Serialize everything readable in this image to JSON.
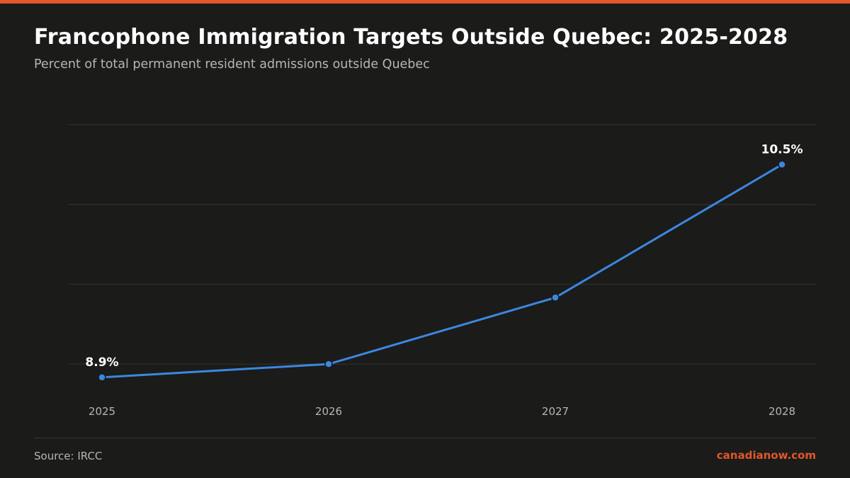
{
  "page": {
    "title": "Francophone Immigration Targets Outside Quebec: 2025-2028",
    "subtitle": "Percent of total permanent resident admissions outside Quebec",
    "source": "Source: IRCC",
    "brand": "canadianow.com"
  },
  "colors": {
    "background": "#1b1b1a",
    "accent": "#e0582a",
    "line": "#3c87e0",
    "grid": "#343432",
    "title": "#ffffff",
    "muted": "#b9b6ac"
  },
  "chart_data": {
    "type": "line",
    "categories": [
      "2025",
      "2026",
      "2027",
      "2028"
    ],
    "series": [
      {
        "values": [
          8.9,
          9.0,
          9.5,
          10.5
        ]
      }
    ],
    "data_labels": [
      {
        "index": 0,
        "text": "8.9%"
      },
      {
        "index": 3,
        "text": "10.5%"
      }
    ],
    "title": "Francophone Immigration Targets Outside Quebec: 2025-2028",
    "subtitle": "Percent of total permanent resident admissions outside Quebec",
    "xlabel": "",
    "ylabel": "",
    "ylim": [
      8.5,
      10.8
    ],
    "gridlines": [
      9.0,
      9.6,
      10.2,
      10.8
    ],
    "grid": true,
    "y_tick_labels_shown": false
  }
}
